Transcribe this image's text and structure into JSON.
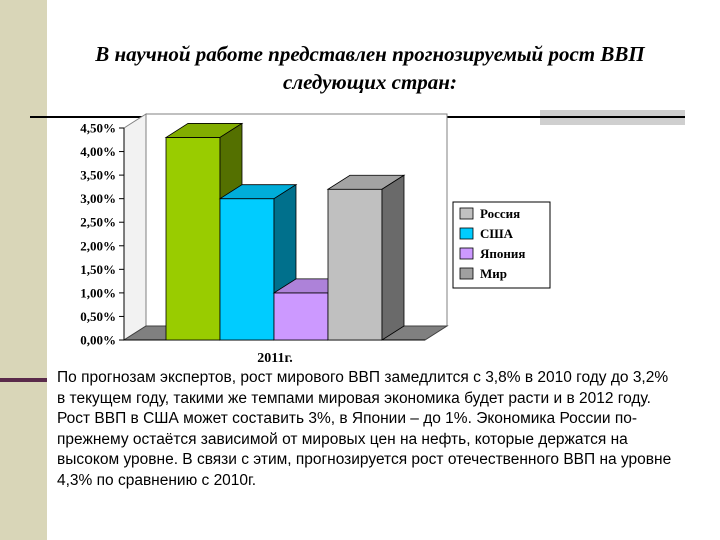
{
  "slide": {
    "title": "В научной работе представлен прогнозируемый рост ВВП следующих стран:",
    "body": "По прогнозам экспертов, рост мирового ВВП замедлится с 3,8% в 2010 году до 3,2% в текущем году, такими же темпами мировая экономика будет расти и в 2012 году. Рост ВВП в США может составить 3%, в Японии – до 1%. Экономика России по-прежнему остаётся зависимой от мировых цен на нефть, которые держатся на высоком уровне.  В связи с этим,  прогнозируется рост отечественного ВВП на уровне 4,3% по сравнению с 2010г."
  },
  "colors": {
    "accent_bar": "#d9d6b8",
    "accent_line": "#5a2a4a"
  },
  "chart_data": {
    "type": "bar",
    "categories": [
      "2011г."
    ],
    "series": [
      {
        "name": "Россия",
        "values": [
          4.3
        ],
        "color": "#99cc00",
        "legend_swatch": "#c0c0c0"
      },
      {
        "name": "США",
        "values": [
          3.0
        ],
        "color": "#00ccff",
        "legend_swatch": "#00ccff"
      },
      {
        "name": "Япония",
        "values": [
          1.0
        ],
        "color": "#cc99ff",
        "legend_swatch": "#cc99ff"
      },
      {
        "name": "Мир",
        "values": [
          3.2
        ],
        "color": "#c0c0c0",
        "legend_swatch": "#a0a0a0"
      }
    ],
    "y_ticks": [
      "0,00%",
      "0,50%",
      "1,00%",
      "1,50%",
      "2,00%",
      "2,50%",
      "3,00%",
      "3,50%",
      "4,00%",
      "4,50%"
    ],
    "ylim": [
      0,
      4.5
    ],
    "grid": false,
    "legend_position": "right",
    "three_d": true
  }
}
